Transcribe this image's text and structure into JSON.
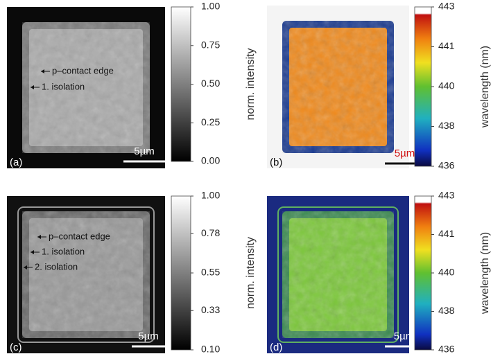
{
  "panels": [
    {
      "label": "(a)",
      "scale_bar": "5µm",
      "annotations": [
        "p–contact edge",
        "1. isolation"
      ],
      "colorbar": {
        "label": "norm. intensity",
        "colormap": "gray",
        "lim": [
          0,
          1
        ],
        "ticks": [
          {
            "value": 0,
            "label": "0.00"
          },
          {
            "value": 0.25,
            "label": "0.25"
          },
          {
            "value": 0.5,
            "label": "0.50"
          },
          {
            "value": 0.75,
            "label": "0.75"
          },
          {
            "value": 1,
            "label": "1.00"
          }
        ]
      }
    },
    {
      "label": "(b)",
      "scale_bar": "5µm",
      "annotations": [],
      "colorbar": {
        "label": "wavelength (nm)",
        "colormap": "spectral",
        "lim": [
          436,
          443
        ],
        "ticks": [
          436,
          {
            "value": 437.75,
            "label": "438"
          },
          {
            "value": 439.5,
            "label": "440"
          },
          {
            "value": 441.25,
            "label": "441"
          },
          443
        ]
      }
    },
    {
      "label": "(c)",
      "scale_bar": "5µm",
      "annotations": [
        "p–contact edge",
        "1. isolation",
        "2. isolation"
      ],
      "colorbar": {
        "label": "norm. intensity",
        "colormap": "gray",
        "lim": [
          0.1,
          1
        ],
        "ticks": [
          {
            "value": 0.1,
            "label": "0.10"
          },
          {
            "value": 0.33,
            "label": "0.33"
          },
          {
            "value": 0.55,
            "label": "0.55"
          },
          {
            "value": 0.78,
            "label": "0.78"
          },
          {
            "value": 1,
            "label": "1.00"
          }
        ]
      }
    },
    {
      "label": "(d)",
      "scale_bar": "5µm",
      "annotations": [],
      "colorbar": {
        "label": "wavelength (nm)",
        "colormap": "spectral",
        "lim": [
          436,
          443
        ],
        "ticks": [
          436,
          {
            "value": 437.75,
            "label": "438"
          },
          {
            "value": 439.5,
            "label": "440"
          },
          {
            "value": 441.25,
            "label": "441"
          },
          443
        ]
      }
    }
  ]
}
